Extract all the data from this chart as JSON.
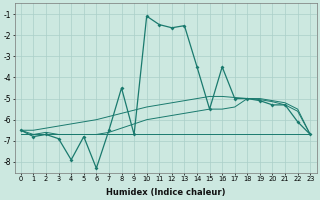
{
  "xlabel": "Humidex (Indice chaleur)",
  "bg_color": "#cce8e0",
  "grid_color": "#aacfc8",
  "line_color": "#1a7a6e",
  "xlim": [
    -0.5,
    23.5
  ],
  "ylim": [
    -8.5,
    -0.5
  ],
  "yticks": [
    -8,
    -7,
    -6,
    -5,
    -4,
    -3,
    -2,
    -1
  ],
  "xticks": [
    0,
    1,
    2,
    3,
    4,
    5,
    6,
    7,
    8,
    9,
    10,
    11,
    12,
    13,
    14,
    15,
    16,
    17,
    18,
    19,
    20,
    21,
    22,
    23
  ],
  "series1_x": [
    0,
    1,
    2,
    3,
    4,
    5,
    6,
    7,
    8,
    9,
    10,
    11,
    12,
    13,
    14,
    15,
    16,
    17,
    18,
    19,
    20,
    21,
    22,
    23
  ],
  "series1_y": [
    -6.5,
    -6.8,
    -6.7,
    -6.9,
    -7.9,
    -6.8,
    -8.3,
    -6.5,
    -4.5,
    -6.7,
    -1.1,
    -1.5,
    -1.65,
    -1.55,
    -3.5,
    -5.5,
    -3.5,
    -5.0,
    -5.0,
    -5.1,
    -5.3,
    -5.3,
    -6.1,
    -6.7
  ],
  "series2_x": [
    0,
    1,
    2,
    3,
    4,
    5,
    6,
    7,
    8,
    9,
    10,
    11,
    12,
    13,
    14,
    15,
    16,
    17,
    18,
    19,
    20,
    21,
    22,
    23
  ],
  "series2_y": [
    -6.5,
    -6.7,
    -6.6,
    -6.7,
    -6.7,
    -6.7,
    -6.7,
    -6.6,
    -6.4,
    -6.2,
    -6.0,
    -5.9,
    -5.8,
    -5.7,
    -5.6,
    -5.5,
    -5.5,
    -5.4,
    -5.0,
    -5.0,
    -5.1,
    -5.2,
    -5.5,
    -6.7
  ],
  "series3_x": [
    0,
    1,
    2,
    3,
    4,
    5,
    6,
    7,
    8,
    9,
    10,
    11,
    12,
    13,
    14,
    15,
    16,
    17,
    18,
    19,
    20,
    21,
    22,
    23
  ],
  "series3_y": [
    -6.5,
    -6.5,
    -6.4,
    -6.3,
    -6.2,
    -6.1,
    -6.0,
    -5.85,
    -5.7,
    -5.55,
    -5.4,
    -5.3,
    -5.2,
    -5.1,
    -5.0,
    -4.9,
    -4.9,
    -4.95,
    -5.0,
    -5.05,
    -5.15,
    -5.3,
    -5.6,
    -6.7
  ],
  "series4_x": [
    0,
    23
  ],
  "series4_y": [
    -6.7,
    -6.7
  ]
}
